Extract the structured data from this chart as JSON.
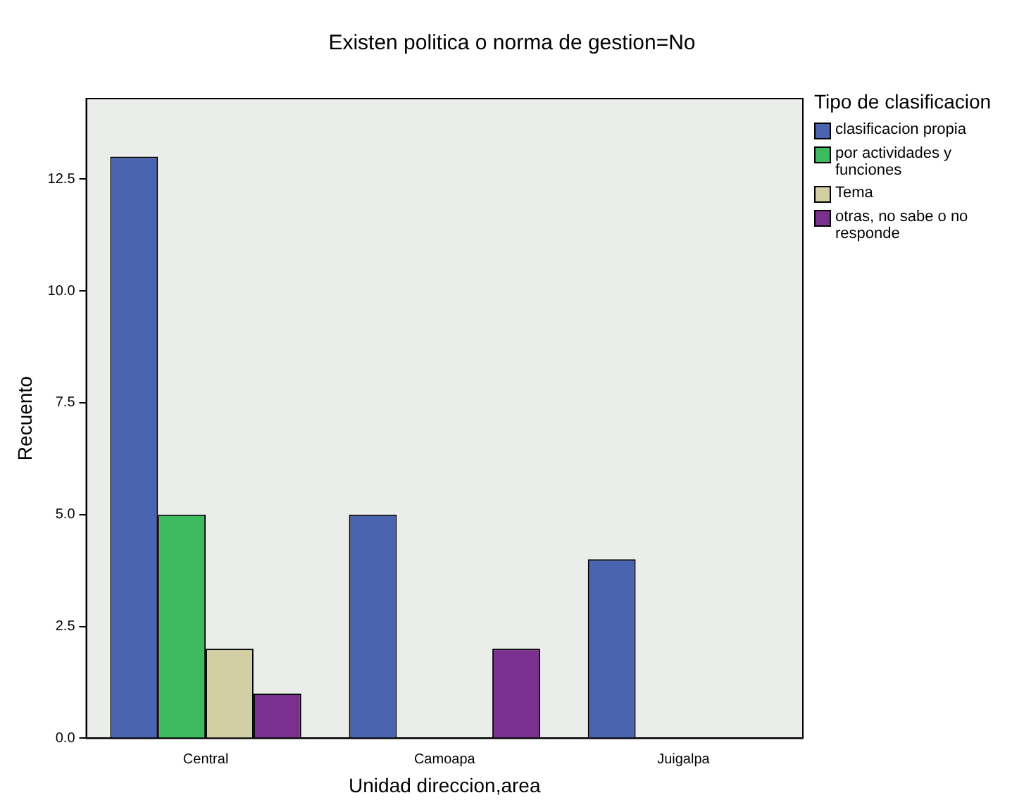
{
  "chart_data": {
    "type": "bar",
    "title": "Existen politica o norma de gestion=No",
    "xlabel": "Unidad direccion,area",
    "ylabel": "Recuento",
    "legend_title": "Tipo de clasificacion",
    "categories": [
      "Central",
      "Camoapa",
      "Juigalpa"
    ],
    "series": [
      {
        "name": "clasificacion propia",
        "color": "#4a64b0",
        "values": [
          13,
          5,
          4
        ]
      },
      {
        "name": "por actividades y funciones",
        "color": "#3fbb5f",
        "values": [
          5,
          0,
          0
        ]
      },
      {
        "name": "Tema",
        "color": "#d2cfa3",
        "values": [
          2,
          0,
          0
        ]
      },
      {
        "name": "otras, no sabe o no responde",
        "color": "#7b2f8f",
        "values": [
          1,
          2,
          0
        ]
      }
    ],
    "ylim": [
      0,
      14.3
    ],
    "yticks": [
      {
        "value": 0,
        "label": "0.0"
      },
      {
        "value": 2.5,
        "label": "2.5"
      },
      {
        "value": 5,
        "label": "5.0"
      },
      {
        "value": 7.5,
        "label": "7.5"
      },
      {
        "value": 10,
        "label": "10.0"
      },
      {
        "value": 12.5,
        "label": "12.5"
      }
    ],
    "grid": false,
    "legend": "top right"
  }
}
